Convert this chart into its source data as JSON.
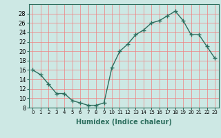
{
  "x": [
    0,
    1,
    2,
    3,
    4,
    5,
    6,
    7,
    8,
    9,
    10,
    11,
    12,
    13,
    14,
    15,
    16,
    17,
    18,
    19,
    20,
    21,
    22,
    23
  ],
  "y": [
    16,
    15,
    13,
    11,
    11,
    9.5,
    9,
    8.5,
    8.5,
    9,
    16.5,
    20,
    21.5,
    23.5,
    24.5,
    26,
    26.5,
    27.5,
    28.5,
    26.5,
    23.5,
    23.5,
    21,
    18.5
  ],
  "xlabel": "Humidex (Indice chaleur)",
  "ylabel": "",
  "line_color": "#2d6e5e",
  "marker": "+",
  "bg_color": "#cde8e4",
  "grid_color": "#f08080",
  "ylim": [
    8,
    30
  ],
  "xlim": [
    -0.5,
    23.5
  ],
  "yticks": [
    8,
    10,
    12,
    14,
    16,
    18,
    20,
    22,
    24,
    26,
    28
  ],
  "xticks": [
    0,
    1,
    2,
    3,
    4,
    5,
    6,
    7,
    8,
    9,
    10,
    11,
    12,
    13,
    14,
    15,
    16,
    17,
    18,
    19,
    20,
    21,
    22,
    23
  ]
}
